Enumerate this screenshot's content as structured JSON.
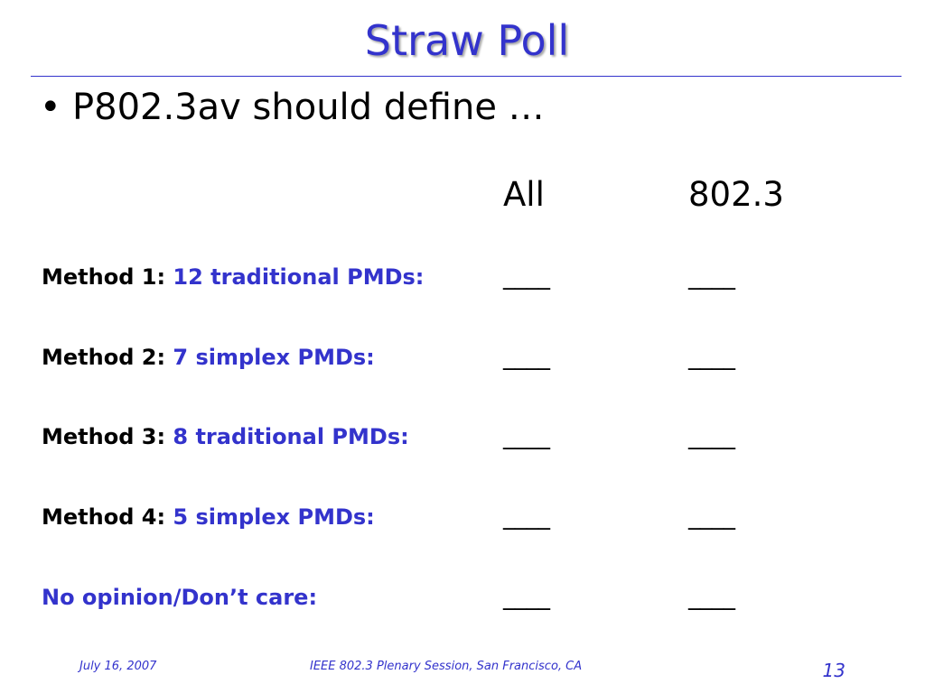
{
  "slide": {
    "title": "Straw Poll",
    "bullet": "P802.3av should define …",
    "bullet_glyph": "•",
    "columns": [
      "All",
      "802.3"
    ],
    "blank": "____",
    "rows": [
      {
        "label": "Method 1:",
        "desc": "12 traditional PMDs:"
      },
      {
        "label": "Method 2:",
        "desc": "7 simplex PMDs:"
      },
      {
        "label": "Method 3:",
        "desc": "8 traditional PMDs:"
      },
      {
        "label": "Method 4:",
        "desc": "5 simplex PMDs:"
      },
      {
        "label": "No opinion/Don’t care:",
        "desc": ""
      }
    ]
  },
  "footer": {
    "date": "July 16, 2007",
    "session": "IEEE 802.3 Plenary Session, San Francisco, CA",
    "page": "13"
  },
  "colors": {
    "accent": "#3333cc",
    "text": "#000000",
    "background": "#ffffff"
  }
}
